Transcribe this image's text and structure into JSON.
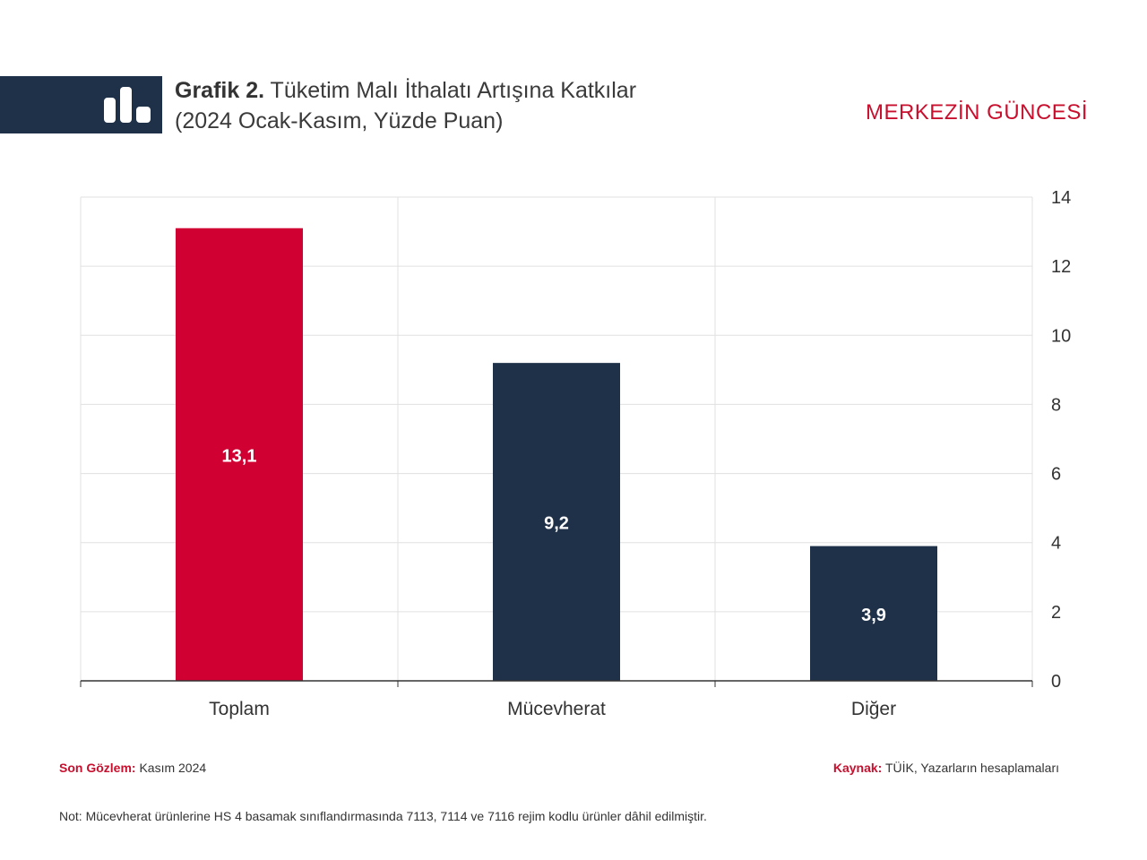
{
  "header": {
    "title_bold": "Grafik 2.",
    "title_rest": " Tüketim Malı İthalatı Artışına Katkılar",
    "subtitle": "(2024 Ocak-Kasım, Yüzde Puan)",
    "brand": "MERKEZİN GÜNCESİ",
    "icon": "bar-chart-icon"
  },
  "chart_data": {
    "type": "bar",
    "categories": [
      "Toplam",
      "Mücevherat",
      "Diğer"
    ],
    "values": [
      13.1,
      9.2,
      3.9
    ],
    "data_labels": [
      "13,1",
      "9,2",
      "3,9"
    ],
    "colors": [
      "#d10032",
      "#1f3148",
      "#1f3148"
    ],
    "ylim": [
      0,
      14
    ],
    "yticks": [
      0,
      2,
      4,
      6,
      8,
      10,
      12,
      14
    ],
    "y_axis_side": "right",
    "grid": true
  },
  "footer": {
    "obs_label": "Son Gözlem:",
    "obs_value": " Kasım 2024",
    "src_label": "Kaynak:",
    "src_value": " TÜİK, Yazarların hesaplamaları",
    "note": "Not: Mücevherat ürünlerine HS 4 basamak sınıflandırmasında 7113, 7114 ve 7116 rejim kodlu ürünler dâhil edilmiştir."
  }
}
